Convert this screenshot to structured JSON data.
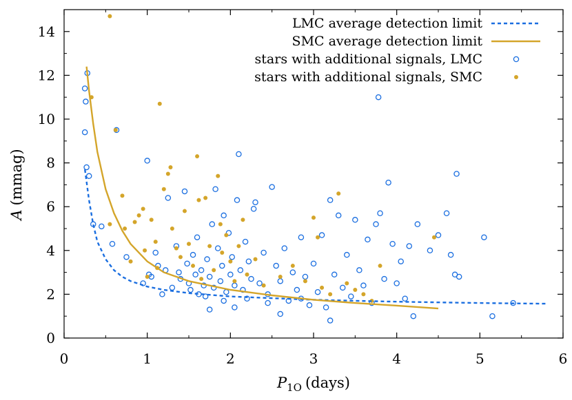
{
  "colors": {
    "lmc": "#1a6ee0",
    "smc": "#d4a52a",
    "axis": "#000000"
  },
  "chart_data": {
    "type": "scatter",
    "xlabel": {
      "symbol": "P",
      "subscript": "1O",
      "unit": "(days)"
    },
    "ylabel": {
      "symbol": "A",
      "unit": "(mmag)"
    },
    "xlim": [
      0,
      6
    ],
    "ylim": [
      0,
      15
    ],
    "xticks": [
      "0",
      "1",
      "2",
      "3",
      "4",
      "5",
      "6"
    ],
    "yticks": [
      "0",
      "2",
      "4",
      "6",
      "8",
      "10",
      "12",
      "14"
    ],
    "grid": false,
    "legend_position": "top-right",
    "series": [
      {
        "name": "LMC average detection limit",
        "kind": "dashed-line",
        "color": "#1a6ee0",
        "points": [
          [
            0.25,
            7.7
          ],
          [
            0.3,
            6.3
          ],
          [
            0.35,
            5.2
          ],
          [
            0.4,
            4.4
          ],
          [
            0.5,
            3.6
          ],
          [
            0.6,
            3.1
          ],
          [
            0.7,
            2.8
          ],
          [
            0.8,
            2.6
          ],
          [
            1.0,
            2.35
          ],
          [
            1.2,
            2.2
          ],
          [
            1.5,
            2.05
          ],
          [
            2.0,
            1.9
          ],
          [
            2.5,
            1.82
          ],
          [
            3.0,
            1.75
          ],
          [
            3.5,
            1.7
          ],
          [
            4.0,
            1.66
          ],
          [
            4.5,
            1.63
          ],
          [
            5.0,
            1.6
          ],
          [
            5.5,
            1.58
          ],
          [
            5.8,
            1.57
          ]
        ]
      },
      {
        "name": "SMC average detection limit",
        "kind": "solid-line",
        "color": "#d4a52a",
        "points": [
          [
            0.27,
            12.4
          ],
          [
            0.3,
            11.3
          ],
          [
            0.35,
            9.8
          ],
          [
            0.4,
            8.5
          ],
          [
            0.5,
            6.8
          ],
          [
            0.6,
            5.7
          ],
          [
            0.7,
            4.9
          ],
          [
            0.8,
            4.3
          ],
          [
            1.0,
            3.5
          ],
          [
            1.2,
            3.0
          ],
          [
            1.5,
            2.6
          ],
          [
            2.0,
            2.2
          ],
          [
            2.5,
            1.95
          ],
          [
            3.0,
            1.75
          ],
          [
            3.5,
            1.6
          ],
          [
            4.0,
            1.48
          ],
          [
            4.5,
            1.35
          ]
        ]
      },
      {
        "name": "stars with additional signals, LMC",
        "kind": "open-circles",
        "color": "#1a6ee0",
        "points": [
          [
            0.25,
            11.4
          ],
          [
            0.28,
            12.1
          ],
          [
            0.26,
            10.8
          ],
          [
            0.25,
            9.4
          ],
          [
            0.27,
            7.8
          ],
          [
            0.3,
            7.4
          ],
          [
            0.35,
            5.2
          ],
          [
            0.45,
            5.1
          ],
          [
            0.58,
            4.3
          ],
          [
            0.63,
            9.5
          ],
          [
            0.75,
            3.7
          ],
          [
            0.95,
            2.5
          ],
          [
            1.0,
            8.1
          ],
          [
            1.02,
            2.9
          ],
          [
            1.05,
            2.8
          ],
          [
            1.1,
            3.9
          ],
          [
            1.13,
            3.3
          ],
          [
            1.18,
            2.0
          ],
          [
            1.22,
            3.1
          ],
          [
            1.25,
            6.4
          ],
          [
            1.3,
            2.3
          ],
          [
            1.35,
            4.2
          ],
          [
            1.38,
            3.0
          ],
          [
            1.4,
            2.7
          ],
          [
            1.45,
            6.7
          ],
          [
            1.48,
            3.4
          ],
          [
            1.5,
            2.5
          ],
          [
            1.52,
            2.2
          ],
          [
            1.55,
            3.8
          ],
          [
            1.58,
            2.9
          ],
          [
            1.6,
            4.6
          ],
          [
            1.62,
            2.0
          ],
          [
            1.65,
            3.1
          ],
          [
            1.68,
            2.4
          ],
          [
            1.7,
            1.9
          ],
          [
            1.72,
            3.6
          ],
          [
            1.75,
            2.8
          ],
          [
            1.78,
            5.2
          ],
          [
            1.8,
            2.3
          ],
          [
            1.82,
            6.8
          ],
          [
            1.85,
            4.1
          ],
          [
            1.88,
            2.6
          ],
          [
            1.9,
            3.3
          ],
          [
            1.92,
            5.6
          ],
          [
            1.95,
            2.1
          ],
          [
            1.98,
            4.8
          ],
          [
            2.0,
            2.9
          ],
          [
            2.02,
            3.7
          ],
          [
            2.05,
            2.4
          ],
          [
            2.08,
            6.3
          ],
          [
            2.1,
            8.4
          ],
          [
            2.12,
            3.1
          ],
          [
            2.15,
            2.2
          ],
          [
            2.18,
            4.4
          ],
          [
            2.2,
            1.8
          ],
          [
            2.22,
            3.5
          ],
          [
            2.25,
            2.7
          ],
          [
            2.28,
            5.9
          ],
          [
            2.3,
            6.2
          ],
          [
            2.35,
            2.5
          ],
          [
            2.4,
            3.9
          ],
          [
            2.45,
            2.0
          ],
          [
            2.5,
            6.9
          ],
          [
            2.55,
            3.3
          ],
          [
            2.6,
            2.6
          ],
          [
            2.65,
            4.1
          ],
          [
            2.7,
            1.7
          ],
          [
            2.75,
            3.0
          ],
          [
            2.8,
            2.2
          ],
          [
            2.85,
            4.6
          ],
          [
            2.9,
            2.8
          ],
          [
            2.95,
            1.5
          ],
          [
            3.0,
            3.4
          ],
          [
            3.05,
            2.1
          ],
          [
            3.1,
            4.7
          ],
          [
            3.15,
            1.4
          ],
          [
            3.2,
            6.3
          ],
          [
            3.25,
            2.9
          ],
          [
            3.3,
            5.6
          ],
          [
            3.35,
            2.3
          ],
          [
            3.4,
            3.8
          ],
          [
            3.45,
            1.9
          ],
          [
            3.5,
            5.4
          ],
          [
            3.55,
            3.1
          ],
          [
            3.6,
            2.4
          ],
          [
            3.65,
            4.5
          ],
          [
            3.7,
            1.6
          ],
          [
            3.75,
            5.2
          ],
          [
            3.78,
            11.0
          ],
          [
            3.8,
            5.7
          ],
          [
            3.85,
            2.7
          ],
          [
            3.9,
            7.1
          ],
          [
            3.95,
            4.3
          ],
          [
            4.0,
            2.5
          ],
          [
            4.05,
            3.5
          ],
          [
            4.1,
            1.8
          ],
          [
            4.15,
            4.2
          ],
          [
            4.2,
            1.0
          ],
          [
            4.25,
            5.2
          ],
          [
            4.4,
            4.0
          ],
          [
            4.5,
            4.7
          ],
          [
            4.6,
            5.7
          ],
          [
            4.65,
            3.8
          ],
          [
            4.7,
            2.9
          ],
          [
            4.72,
            7.5
          ],
          [
            4.75,
            2.8
          ],
          [
            5.05,
            4.6
          ],
          [
            5.15,
            1.0
          ],
          [
            5.4,
            1.6
          ],
          [
            3.2,
            0.8
          ],
          [
            2.6,
            1.1
          ],
          [
            1.75,
            1.3
          ],
          [
            2.05,
            1.4
          ],
          [
            2.45,
            1.6
          ],
          [
            2.85,
            1.8
          ],
          [
            1.92,
            1.7
          ]
        ]
      },
      {
        "name": "stars with additional signals, SMC",
        "kind": "filled-circles",
        "color": "#d4a52a",
        "points": [
          [
            0.55,
            14.7
          ],
          [
            0.33,
            11.0
          ],
          [
            0.62,
            9.5
          ],
          [
            0.55,
            5.2
          ],
          [
            0.7,
            6.5
          ],
          [
            0.73,
            5.0
          ],
          [
            0.8,
            3.5
          ],
          [
            0.85,
            5.3
          ],
          [
            0.9,
            5.6
          ],
          [
            0.95,
            5.9
          ],
          [
            0.97,
            4.0
          ],
          [
            1.0,
            2.8
          ],
          [
            1.05,
            5.4
          ],
          [
            1.1,
            4.4
          ],
          [
            1.12,
            3.2
          ],
          [
            1.15,
            10.7
          ],
          [
            1.2,
            6.8
          ],
          [
            1.25,
            7.5
          ],
          [
            1.28,
            7.8
          ],
          [
            1.3,
            5.0
          ],
          [
            1.35,
            4.1
          ],
          [
            1.4,
            3.7
          ],
          [
            1.45,
            5.8
          ],
          [
            1.5,
            4.3
          ],
          [
            1.55,
            3.3
          ],
          [
            1.6,
            8.3
          ],
          [
            1.62,
            6.3
          ],
          [
            1.65,
            2.7
          ],
          [
            1.7,
            6.4
          ],
          [
            1.75,
            4.2
          ],
          [
            1.8,
            3.1
          ],
          [
            1.85,
            7.4
          ],
          [
            1.88,
            5.2
          ],
          [
            1.9,
            3.9
          ],
          [
            1.95,
            4.7
          ],
          [
            2.0,
            3.5
          ],
          [
            2.05,
            2.6
          ],
          [
            2.1,
            4.2
          ],
          [
            2.15,
            5.4
          ],
          [
            2.2,
            2.9
          ],
          [
            2.3,
            3.6
          ],
          [
            2.4,
            2.4
          ],
          [
            2.6,
            2.8
          ],
          [
            2.75,
            3.3
          ],
          [
            2.9,
            2.6
          ],
          [
            3.0,
            5.5
          ],
          [
            3.05,
            4.6
          ],
          [
            3.1,
            2.3
          ],
          [
            3.2,
            2.0
          ],
          [
            3.3,
            6.6
          ],
          [
            3.4,
            2.5
          ],
          [
            3.5,
            2.2
          ],
          [
            3.6,
            2.0
          ],
          [
            3.7,
            1.7
          ],
          [
            3.8,
            3.3
          ],
          [
            4.45,
            4.6
          ]
        ]
      }
    ]
  }
}
